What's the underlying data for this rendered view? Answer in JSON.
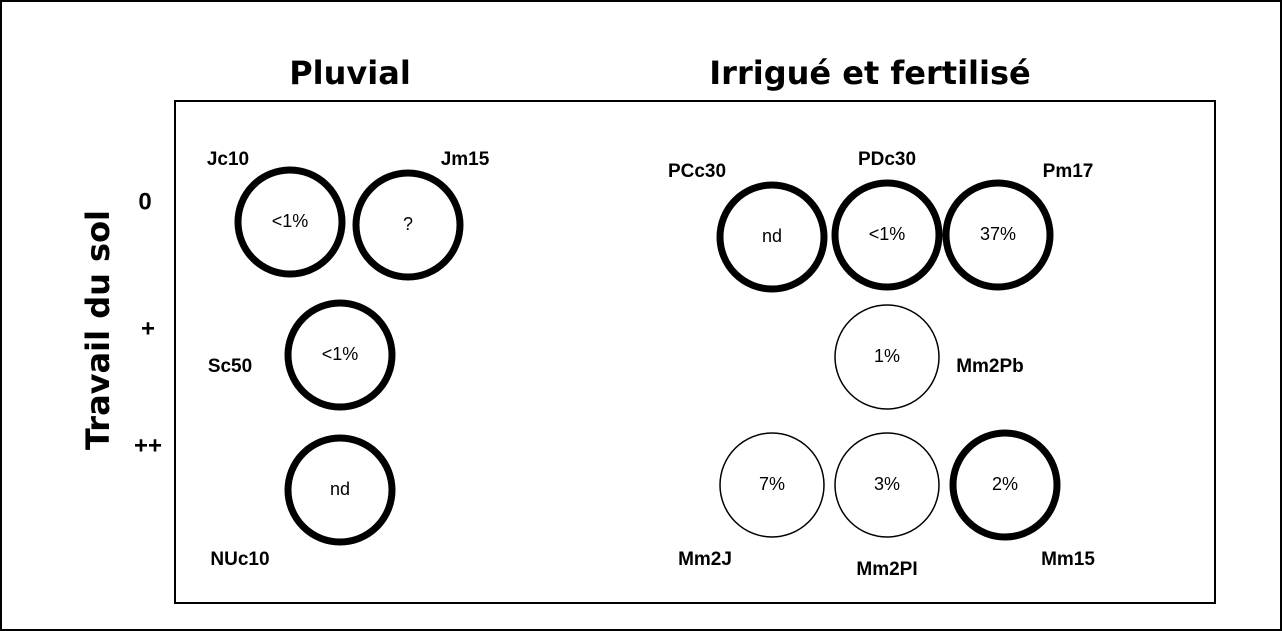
{
  "columns": [
    "Pluvial",
    "Irrigué et fertilisé"
  ],
  "axis_title": "Travail du sol",
  "rows": [
    "0",
    "+",
    "++"
  ],
  "nodes": [
    {
      "label": "Jc10",
      "value": "<1%"
    },
    {
      "label": "Jm15",
      "value": "?"
    },
    {
      "label": "Sc50",
      "value": "<1%"
    },
    {
      "label": "NUc10",
      "value": "nd"
    },
    {
      "label": "PCc30",
      "value": "nd"
    },
    {
      "label": "PDc30",
      "value": "<1%"
    },
    {
      "label": "Pm17",
      "value": "37%"
    },
    {
      "label": "Mm2Pb",
      "value": "1%"
    },
    {
      "label": "Mm2J",
      "value": "7%"
    },
    {
      "label": "Mm2PI",
      "value": "3%"
    },
    {
      "label": "Mm15",
      "value": "2%"
    }
  ]
}
